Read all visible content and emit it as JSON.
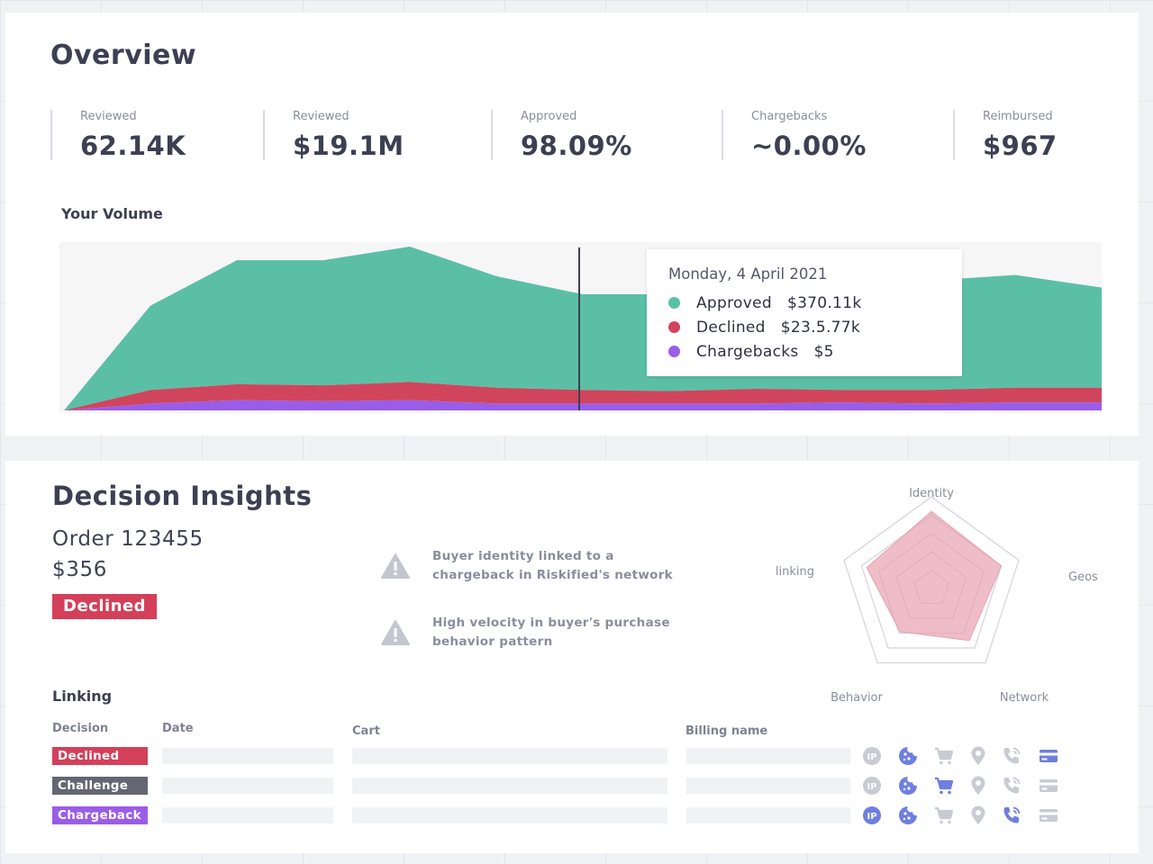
{
  "overview": {
    "title": "Overview",
    "stats": [
      {
        "label": "Reviewed",
        "value": "62.14K"
      },
      {
        "label": "Reviewed",
        "value": "$19.1M"
      },
      {
        "label": "Approved",
        "value": "98.09%"
      },
      {
        "label": "Chargebacks",
        "value": "~0.00%"
      },
      {
        "label": "Reimbursed",
        "value": "$967"
      }
    ],
    "volume_title": "Your Volume",
    "tooltip": {
      "date": "Monday, 4 April 2021",
      "rows": [
        {
          "label": "Approved",
          "value": "$370.11k",
          "color": "#5bbfa6"
        },
        {
          "label": "Declined",
          "value": "$23.5.77k",
          "color": "#d1455c"
        },
        {
          "label": "Chargebacks",
          "value": "$5",
          "color": "#9a5de8"
        }
      ]
    }
  },
  "chart_data": {
    "type": "area",
    "stacked": true,
    "title": "Your Volume",
    "xlabel": "",
    "ylabel": "",
    "grid": false,
    "legend": "none",
    "highlighted_index": 6,
    "series": [
      {
        "name": "Chargebacks",
        "color": "#9a5de8",
        "values": [
          0,
          6,
          9,
          8,
          9,
          6,
          6,
          6,
          6,
          7,
          6,
          7,
          7
        ]
      },
      {
        "name": "Declined",
        "color": "#d1455c",
        "values": [
          0,
          12,
          14,
          14,
          16,
          14,
          12,
          11,
          13,
          11,
          12,
          13,
          13
        ]
      },
      {
        "name": "Approved",
        "color": "#5bbfa6",
        "values": [
          0,
          74,
          109,
          110,
          119,
          98,
          84,
          85,
          88,
          101,
          96,
          99,
          88
        ]
      }
    ]
  },
  "insights": {
    "title": "Decision Insights",
    "order_label": "Order 123455",
    "order_amount": "$356",
    "decision": "Declined",
    "reasons": [
      {
        "text": "Buyer identity linked to a chargeback in Riskified's network",
        "icon": "warning-icon"
      },
      {
        "text": "High velocity in buyer's purchase behavior pattern",
        "icon": "warning-icon"
      }
    ],
    "radar": {
      "axes": [
        "Identity",
        "Geos",
        "Network",
        "Behavior",
        "linking"
      ],
      "values": [
        0.84,
        0.8,
        0.7,
        0.58,
        0.74
      ],
      "fill_color": "#e8a1b0"
    },
    "linking": {
      "title": "Linking",
      "columns": [
        "Decision",
        "Date",
        "Cart",
        "Billing name"
      ],
      "rows": [
        {
          "decision": "Declined",
          "color": "#d43f5a",
          "icons_active": [
            false,
            true,
            false,
            false,
            false,
            true
          ]
        },
        {
          "decision": "Challenge",
          "color": "#646672",
          "icons_active": [
            false,
            true,
            true,
            false,
            false,
            false
          ]
        },
        {
          "decision": "Chargeback",
          "color": "#9a5de8",
          "icons_active": [
            true,
            true,
            false,
            false,
            true,
            false
          ]
        }
      ],
      "icon_names": [
        "ip-icon",
        "cookie-icon",
        "cart-icon",
        "location-pin-icon",
        "phone-icon",
        "credit-card-icon"
      ],
      "active_color": "#6f7fe0",
      "inactive_color": "#c9cbd3"
    }
  }
}
